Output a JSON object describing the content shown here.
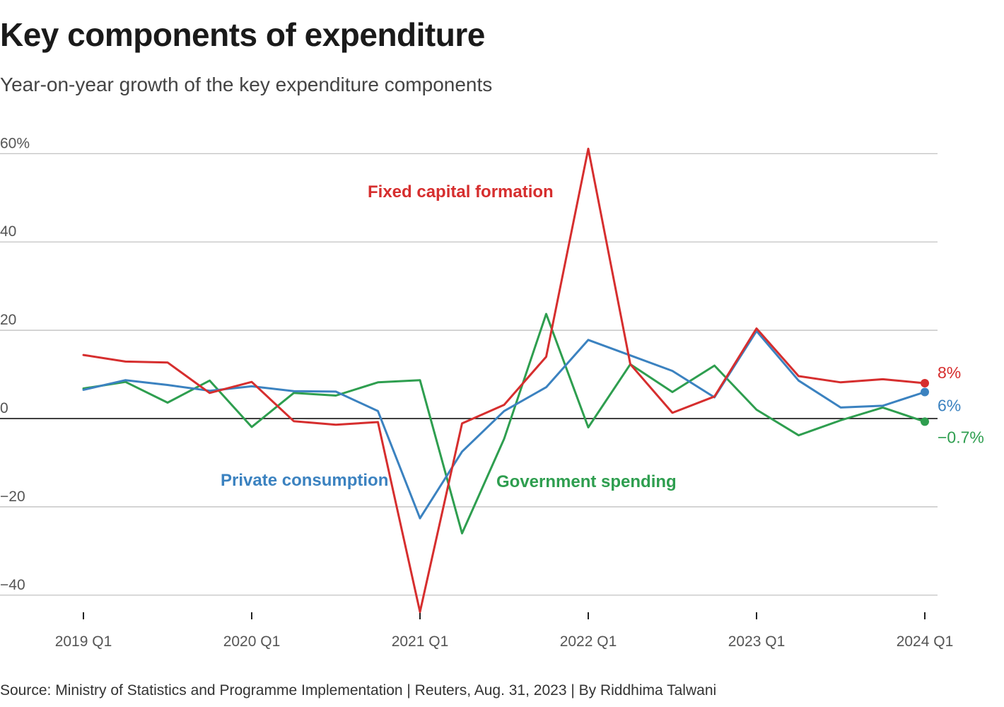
{
  "header": {
    "title": "Key components of expenditure",
    "subtitle": "Year-on-year growth of the key expenditure components"
  },
  "footer": {
    "source": "Source: Ministry of Statistics and Programme Implementation | Reuters, Aug. 31, 2023 | By Riddhima Talwani"
  },
  "colors": {
    "fixed_capital": "#d62e2e",
    "private_consumption": "#3b82c0",
    "government_spending": "#2e9e4f",
    "grid": "#bbbbbb",
    "zero_line": "#000000"
  },
  "chart_data": {
    "type": "line",
    "title": "Key components of expenditure",
    "subtitle": "Year-on-year growth of the key expenditure components",
    "xlabel": "",
    "ylabel": "",
    "x": [
      "2019 Q1",
      "2019 Q2",
      "2019 Q3",
      "2019 Q4",
      "2020 Q1",
      "2020 Q2",
      "2020 Q3",
      "2020 Q4",
      "2021 Q1",
      "2021 Q2",
      "2021 Q3",
      "2021 Q4",
      "2022 Q1",
      "2022 Q2",
      "2022 Q3",
      "2022 Q4",
      "2023 Q1",
      "2023 Q2",
      "2023 Q3",
      "2023 Q4",
      "2024 Q1"
    ],
    "x_ticks": [
      "2019 Q1",
      "2020 Q1",
      "2021 Q1",
      "2022 Q1",
      "2023 Q1",
      "2024 Q1"
    ],
    "y_ticks": [
      {
        "value": 60,
        "label": "60%"
      },
      {
        "value": 40,
        "label": "40"
      },
      {
        "value": 20,
        "label": "20"
      },
      {
        "value": 0,
        "label": "0"
      },
      {
        "value": -20,
        "label": "−20"
      },
      {
        "value": -40,
        "label": "−40"
      }
    ],
    "ylim": [
      -45,
      62
    ],
    "grid": true,
    "series": [
      {
        "name": "Fixed capital formation",
        "color": "#d62e2e",
        "values": [
          14.4,
          12.9,
          12.7,
          5.8,
          8.3,
          -0.6,
          -1.4,
          -0.8,
          -43.8,
          -1.1,
          3.1,
          14.0,
          61.1,
          12.3,
          1.3,
          5.0,
          20.4,
          9.6,
          8.2,
          8.9,
          8.0
        ],
        "end_label": "8%"
      },
      {
        "name": "Private consumption",
        "color": "#3b82c0",
        "values": [
          6.5,
          8.7,
          7.6,
          6.3,
          7.3,
          6.2,
          6.1,
          1.7,
          -22.6,
          -7.5,
          1.7,
          7.1,
          17.8,
          14.3,
          10.8,
          4.8,
          19.8,
          8.6,
          2.5,
          2.9,
          6.0
        ],
        "end_label": "6%"
      },
      {
        "name": "Government spending",
        "color": "#2e9e4f",
        "values": [
          6.8,
          8.3,
          3.6,
          8.6,
          -1.9,
          5.8,
          5.2,
          8.2,
          8.7,
          -26.0,
          -4.6,
          23.7,
          -2.0,
          12.3,
          6.0,
          12.0,
          2.0,
          -3.8,
          -0.4,
          2.5,
          -0.7
        ],
        "end_label": "−0.7%"
      }
    ],
    "annotations": [
      {
        "text": "Fixed capital formation"
      },
      {
        "text": "Private consumption"
      },
      {
        "text": "Government spending"
      }
    ]
  }
}
